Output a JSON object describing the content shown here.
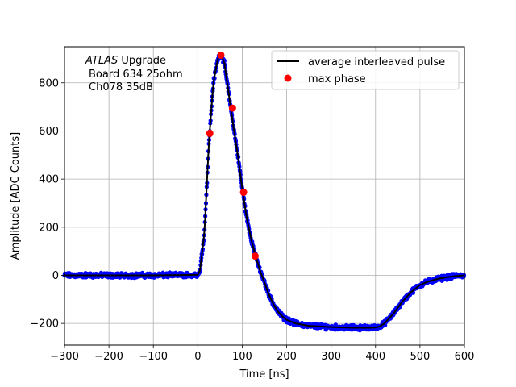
{
  "chart_data": {
    "type": "scatter",
    "xlabel": "Time [ns]",
    "ylabel": "Amplitude [ADC Counts]",
    "xlim": [
      -300,
      600
    ],
    "ylim": [
      -290,
      950
    ],
    "xticks": [
      -300,
      -200,
      -100,
      0,
      100,
      200,
      300,
      400,
      500,
      600
    ],
    "yticks": [
      -200,
      0,
      200,
      400,
      600,
      800
    ],
    "xtick_labels": [
      "−300",
      "−200",
      "−100",
      "0",
      "100",
      "200",
      "300",
      "400",
      "500",
      "600"
    ],
    "ytick_labels": [
      "−200",
      "0",
      "200",
      "400",
      "600",
      "800"
    ],
    "grid": true,
    "annotation": {
      "line1_italic": "ATLAS",
      "line1_rest": " Upgrade",
      "line2": "Board 634 25ohm",
      "line3": "Ch078 35dB"
    },
    "legend": {
      "placement": "top-right",
      "entries": [
        "average interleaved pulse",
        "max phase"
      ]
    },
    "series": [
      {
        "name": "average interleaved pulse",
        "style": "line",
        "color": "#000000",
        "x": [
          -300,
          -100,
          0,
          5,
          15,
          25,
          35,
          45,
          52,
          60,
          70,
          80,
          90,
          100,
          110,
          120,
          130,
          140,
          150,
          160,
          170,
          180,
          190,
          200,
          220,
          250,
          300,
          350,
          390,
          400,
          410,
          420,
          440,
          460,
          480,
          500,
          520,
          540,
          560,
          580,
          600
        ],
        "y": [
          0,
          0,
          2,
          20,
          180,
          550,
          800,
          900,
          920,
          880,
          750,
          620,
          500,
          360,
          240,
          150,
          80,
          20,
          -30,
          -80,
          -120,
          -150,
          -170,
          -185,
          -200,
          -210,
          -215,
          -218,
          -218,
          -217,
          -212,
          -200,
          -160,
          -110,
          -70,
          -40,
          -25,
          -15,
          -8,
          -3,
          0
        ]
      },
      {
        "name": "scatter samples",
        "style": "points",
        "color": "#0000ff",
        "noise": 6
      },
      {
        "name": "max phase",
        "style": "markers",
        "color": "#ff0000",
        "x": [
          27,
          52,
          78,
          103,
          129
        ],
        "y": [
          590,
          915,
          695,
          345,
          80
        ]
      }
    ]
  }
}
